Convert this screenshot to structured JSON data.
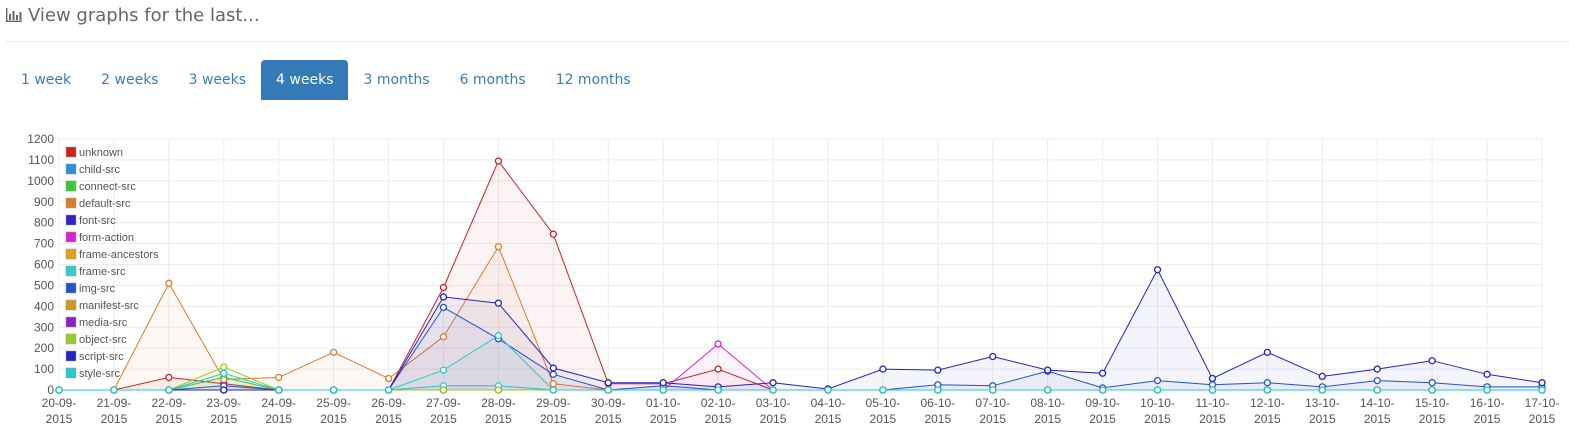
{
  "header": {
    "icon": "bar-chart-icon",
    "title": "View graphs for the last..."
  },
  "tabs": [
    {
      "label": "1 week",
      "active": false
    },
    {
      "label": "2 weeks",
      "active": false
    },
    {
      "label": "3 weeks",
      "active": false
    },
    {
      "label": "4 weeks",
      "active": true
    },
    {
      "label": "3 months",
      "active": false
    },
    {
      "label": "6 months",
      "active": false
    },
    {
      "label": "12 months",
      "active": false
    }
  ],
  "chart_data": {
    "type": "area",
    "title": "",
    "xlabel": "",
    "ylabel": "",
    "ylim": [
      0,
      1200
    ],
    "yticks": [
      0,
      100,
      200,
      300,
      400,
      500,
      600,
      700,
      800,
      900,
      1000,
      1100,
      1200
    ],
    "grid": true,
    "legend_position": "top-left",
    "categories": [
      "20-09-2015",
      "21-09-2015",
      "22-09-2015",
      "23-09-2015",
      "24-09-2015",
      "25-09-2015",
      "26-09-2015",
      "27-09-2015",
      "28-09-2015",
      "29-09-2015",
      "30-09-2015",
      "01-10-2015",
      "02-10-2015",
      "03-10-2015",
      "04-10-2015",
      "05-10-2015",
      "06-10-2015",
      "07-10-2015",
      "08-10-2015",
      "09-10-2015",
      "10-10-2015",
      "11-10-2015",
      "12-10-2015",
      "13-10-2015",
      "14-10-2015",
      "15-10-2015",
      "16-10-2015",
      "17-10-2015"
    ],
    "series": [
      {
        "name": "unknown",
        "color": "#cc2222",
        "values": [
          0,
          0,
          60,
          30,
          0,
          0,
          0,
          490,
          1095,
          745,
          30,
          30,
          100,
          0,
          0,
          0,
          0,
          0,
          0,
          0,
          0,
          0,
          0,
          0,
          0,
          0,
          0,
          0
        ]
      },
      {
        "name": "child-src",
        "color": "#2a8fd8",
        "values": [
          0,
          0,
          0,
          0,
          0,
          0,
          0,
          0,
          0,
          0,
          0,
          0,
          0,
          0,
          0,
          0,
          0,
          0,
          0,
          0,
          0,
          0,
          0,
          0,
          0,
          0,
          0,
          0
        ]
      },
      {
        "name": "connect-src",
        "color": "#33cc33",
        "values": [
          0,
          0,
          0,
          60,
          0,
          0,
          0,
          0,
          0,
          0,
          0,
          0,
          0,
          0,
          0,
          0,
          0,
          0,
          0,
          0,
          0,
          0,
          0,
          0,
          0,
          0,
          0,
          0
        ]
      },
      {
        "name": "default-src",
        "color": "#e07a28",
        "values": [
          0,
          0,
          510,
          50,
          60,
          180,
          55,
          255,
          685,
          30,
          0,
          0,
          0,
          0,
          0,
          0,
          0,
          0,
          0,
          0,
          0,
          0,
          0,
          0,
          0,
          0,
          0,
          0
        ]
      },
      {
        "name": "font-src",
        "color": "#3322cc",
        "values": [
          0,
          0,
          0,
          0,
          0,
          0,
          0,
          0,
          0,
          0,
          0,
          0,
          0,
          0,
          0,
          0,
          0,
          0,
          0,
          0,
          0,
          0,
          0,
          0,
          0,
          0,
          0,
          0
        ]
      },
      {
        "name": "form-action",
        "color": "#dd22cc",
        "values": [
          0,
          0,
          0,
          0,
          0,
          0,
          0,
          0,
          0,
          0,
          0,
          0,
          220,
          0,
          0,
          0,
          0,
          0,
          0,
          0,
          0,
          0,
          0,
          0,
          0,
          0,
          0,
          0
        ]
      },
      {
        "name": "frame-ancestors",
        "color": "#e0a020",
        "values": [
          0,
          0,
          0,
          0,
          0,
          0,
          0,
          0,
          0,
          0,
          0,
          0,
          0,
          0,
          0,
          0,
          0,
          0,
          0,
          0,
          0,
          0,
          0,
          0,
          0,
          0,
          0,
          0
        ]
      },
      {
        "name": "frame-src",
        "color": "#33cccc",
        "values": [
          0,
          0,
          0,
          0,
          0,
          0,
          0,
          20,
          20,
          0,
          0,
          0,
          0,
          0,
          0,
          0,
          0,
          0,
          0,
          0,
          0,
          0,
          0,
          0,
          0,
          0,
          0,
          0
        ]
      },
      {
        "name": "img-src",
        "color": "#2255cc",
        "values": [
          0,
          0,
          0,
          20,
          0,
          0,
          0,
          395,
          245,
          75,
          0,
          20,
          0,
          0,
          0,
          0,
          25,
          20,
          90,
          10,
          45,
          25,
          35,
          15,
          45,
          35,
          15,
          15
        ]
      },
      {
        "name": "manifest-src",
        "color": "#cc9922",
        "values": [
          0,
          0,
          0,
          0,
          0,
          0,
          0,
          0,
          0,
          0,
          0,
          0,
          0,
          0,
          0,
          0,
          0,
          0,
          0,
          0,
          0,
          0,
          0,
          0,
          0,
          0,
          0,
          0
        ]
      },
      {
        "name": "media-src",
        "color": "#8822cc",
        "values": [
          0,
          0,
          0,
          0,
          0,
          0,
          0,
          0,
          0,
          0,
          0,
          0,
          0,
          0,
          0,
          0,
          0,
          0,
          0,
          0,
          0,
          0,
          0,
          0,
          0,
          0,
          0,
          0
        ]
      },
      {
        "name": "object-src",
        "color": "#99cc22",
        "values": [
          0,
          0,
          0,
          110,
          0,
          0,
          0,
          0,
          0,
          0,
          0,
          0,
          0,
          0,
          0,
          0,
          0,
          0,
          0,
          0,
          0,
          0,
          0,
          0,
          0,
          0,
          0,
          0
        ]
      },
      {
        "name": "script-src",
        "color": "#2222cc",
        "values": [
          0,
          0,
          0,
          0,
          0,
          0,
          0,
          445,
          415,
          105,
          35,
          35,
          15,
          35,
          5,
          100,
          95,
          160,
          95,
          80,
          575,
          55,
          180,
          65,
          100,
          140,
          75,
          35
        ]
      },
      {
        "name": "style-src",
        "color": "#22cccc",
        "values": [
          0,
          0,
          0,
          80,
          0,
          0,
          0,
          95,
          260,
          0,
          0,
          0,
          0,
          0,
          0,
          0,
          0,
          0,
          0,
          0,
          0,
          0,
          0,
          0,
          0,
          0,
          0,
          0
        ]
      }
    ]
  }
}
